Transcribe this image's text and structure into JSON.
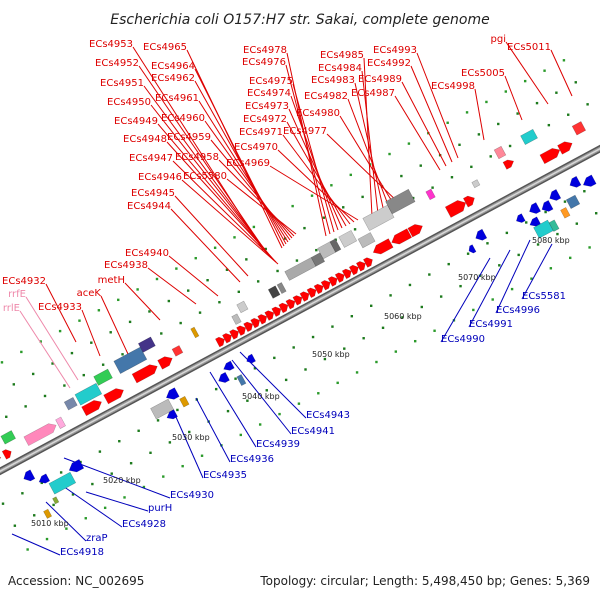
{
  "title": "Escherichia coli O157:H7 str. Sakai, complete genome",
  "footer": {
    "accession": "Accession: NC_002695",
    "topology": "Topology: circular; Length: 5,498,450 bp; Genes: 5,369"
  },
  "colors": {
    "forward": "#ff0000",
    "reverse": "#0000dd",
    "rrna": "#ff88bb",
    "backbone": "#999999"
  },
  "tick_labels": [
    "5010 kbp",
    "5020 kbp",
    "5030 kbp",
    "5040 kbp",
    "5050 kbp",
    "5060 kbp",
    "5070 kbp",
    "5080 kbp"
  ],
  "red_labels": [
    "ECs4953",
    "ECs4965",
    "ECs4952",
    "ECs4964",
    "ECs4951",
    "ECs4962",
    "ECs4950",
    "ECs4961",
    "ECs4949",
    "ECs4960",
    "ECs4948",
    "ECs4959",
    "ECs4947",
    "ECs4958",
    "ECs4946",
    "ECs5580",
    "ECs4945",
    "ECs4944",
    "ECs4978",
    "ECs4976",
    "ECs4975",
    "ECs4974",
    "ECs4973",
    "ECs4972",
    "ECs4971",
    "ECs4970",
    "ECs4969",
    "ECs4985",
    "ECs4984",
    "ECs4983",
    "ECs4982",
    "ECs4980",
    "ECs4977",
    "ECs4993",
    "ECs4992",
    "ECs4989",
    "ECs4987",
    "ECs4998",
    "ECs5005",
    "ECs5011",
    "pgi",
    "ECs4940",
    "ECs4938",
    "metH",
    "aceK",
    "ECs4933",
    "ECs4932"
  ],
  "pink_labels": [
    "rrfE",
    "rrlE"
  ],
  "blue_labels": [
    "ECs4943",
    "ECs4941",
    "ECs4939",
    "ECs4936",
    "ECs4935",
    "ECs4930",
    "purH",
    "ECs4928",
    "zraP",
    "ECs4918",
    "ECs5581",
    "ECs4996",
    "ECs4991",
    "ECs4990"
  ]
}
